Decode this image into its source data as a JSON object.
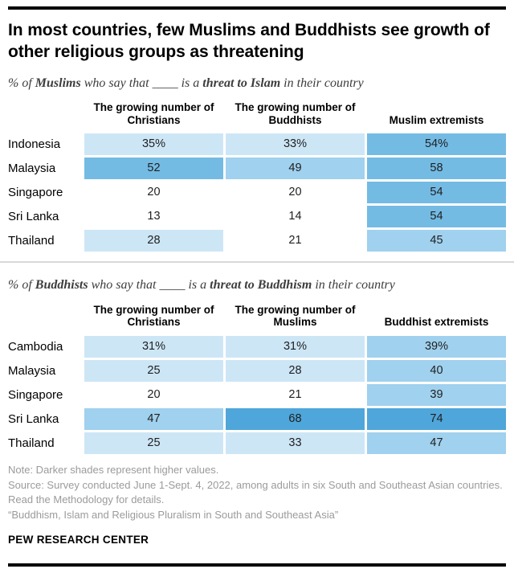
{
  "title": "In most countries, few Muslims and Buddhists see growth of other religious groups as threatening",
  "colors": {
    "accent_bar": "#000000",
    "divider": "#d8d8d8",
    "note_gray": "#9b9b9b"
  },
  "shades": {
    "white": "#ffffff",
    "light": "#cde6f6",
    "medium": "#a0d1ee",
    "dark": "#74bbe4",
    "darkest": "#4fa6da"
  },
  "tables": [
    {
      "id": "muslims",
      "subtitle_parts": [
        {
          "t": "% of ",
          "b": false
        },
        {
          "t": "Muslims",
          "b": true
        },
        {
          "t": " who say that ____ is a ",
          "b": false
        },
        {
          "t": "threat to Islam",
          "b": true
        },
        {
          "t": " in their country",
          "b": false
        }
      ],
      "columns": [
        "The growing number of Christians",
        "The growing number of Buddhists",
        "Muslim extremists"
      ],
      "rows": [
        {
          "label": "Indonesia",
          "cells": [
            {
              "text": "35%",
              "shade": "light"
            },
            {
              "text": "33%",
              "shade": "light"
            },
            {
              "text": "54%",
              "shade": "dark"
            }
          ]
        },
        {
          "label": "Malaysia",
          "cells": [
            {
              "text": "52",
              "shade": "dark"
            },
            {
              "text": "49",
              "shade": "medium"
            },
            {
              "text": "58",
              "shade": "dark"
            }
          ]
        },
        {
          "label": "Singapore",
          "cells": [
            {
              "text": "20",
              "shade": "white"
            },
            {
              "text": "20",
              "shade": "white"
            },
            {
              "text": "54",
              "shade": "dark"
            }
          ]
        },
        {
          "label": "Sri Lanka",
          "cells": [
            {
              "text": "13",
              "shade": "white"
            },
            {
              "text": "14",
              "shade": "white"
            },
            {
              "text": "54",
              "shade": "dark"
            }
          ]
        },
        {
          "label": "Thailand",
          "cells": [
            {
              "text": "28",
              "shade": "light"
            },
            {
              "text": "21",
              "shade": "white"
            },
            {
              "text": "45",
              "shade": "medium"
            }
          ]
        }
      ]
    },
    {
      "id": "buddhists",
      "subtitle_parts": [
        {
          "t": "% of ",
          "b": false
        },
        {
          "t": "Buddhists",
          "b": true
        },
        {
          "t": " who say that ____ is a ",
          "b": false
        },
        {
          "t": "threat to Buddhism",
          "b": true
        },
        {
          "t": " in their country",
          "b": false
        }
      ],
      "columns": [
        "The growing number of Christians",
        "The growing number of Muslims",
        "Buddhist extremists"
      ],
      "rows": [
        {
          "label": "Cambodia",
          "cells": [
            {
              "text": "31%",
              "shade": "light"
            },
            {
              "text": "31%",
              "shade": "light"
            },
            {
              "text": "39%",
              "shade": "medium"
            }
          ]
        },
        {
          "label": "Malaysia",
          "cells": [
            {
              "text": "25",
              "shade": "light"
            },
            {
              "text": "28",
              "shade": "light"
            },
            {
              "text": "40",
              "shade": "medium"
            }
          ]
        },
        {
          "label": "Singapore",
          "cells": [
            {
              "text": "20",
              "shade": "white"
            },
            {
              "text": "21",
              "shade": "white"
            },
            {
              "text": "39",
              "shade": "medium"
            }
          ]
        },
        {
          "label": "Sri Lanka",
          "cells": [
            {
              "text": "47",
              "shade": "medium"
            },
            {
              "text": "68",
              "shade": "darkest"
            },
            {
              "text": "74",
              "shade": "darkest"
            }
          ]
        },
        {
          "label": "Thailand",
          "cells": [
            {
              "text": "25",
              "shade": "light"
            },
            {
              "text": "33",
              "shade": "light"
            },
            {
              "text": "47",
              "shade": "medium"
            }
          ]
        }
      ]
    }
  ],
  "footer": {
    "note": "Note: Darker shades represent higher values.",
    "source": "Source: Survey conducted June 1-Sept. 4, 2022, among adults in six South and Southeast Asian countries. Read the Methodology for details.",
    "report": "“Buddhism, Islam and Religious Pluralism in South and Southeast Asia”",
    "brand": "PEW RESEARCH CENTER"
  },
  "chart_data": [
    {
      "type": "heatmap",
      "title": "% of Muslims who say that ____ is a threat to Islam in their country",
      "rows": [
        "Indonesia",
        "Malaysia",
        "Singapore",
        "Sri Lanka",
        "Thailand"
      ],
      "columns": [
        "The growing number of Christians",
        "The growing number of Buddhists",
        "Muslim extremists"
      ],
      "values": [
        [
          35,
          33,
          54
        ],
        [
          52,
          49,
          58
        ],
        [
          20,
          20,
          54
        ],
        [
          13,
          14,
          54
        ],
        [
          28,
          21,
          45
        ]
      ],
      "unit": "percent",
      "legend": "Darker shades represent higher values"
    },
    {
      "type": "heatmap",
      "title": "% of Buddhists who say that ____ is a threat to Buddhism in their country",
      "rows": [
        "Cambodia",
        "Malaysia",
        "Singapore",
        "Sri Lanka",
        "Thailand"
      ],
      "columns": [
        "The growing number of Christians",
        "The growing number of Muslims",
        "Buddhist extremists"
      ],
      "values": [
        [
          31,
          31,
          39
        ],
        [
          25,
          28,
          40
        ],
        [
          20,
          21,
          39
        ],
        [
          47,
          68,
          74
        ],
        [
          25,
          33,
          47
        ]
      ],
      "unit": "percent",
      "legend": "Darker shades represent higher values"
    }
  ]
}
